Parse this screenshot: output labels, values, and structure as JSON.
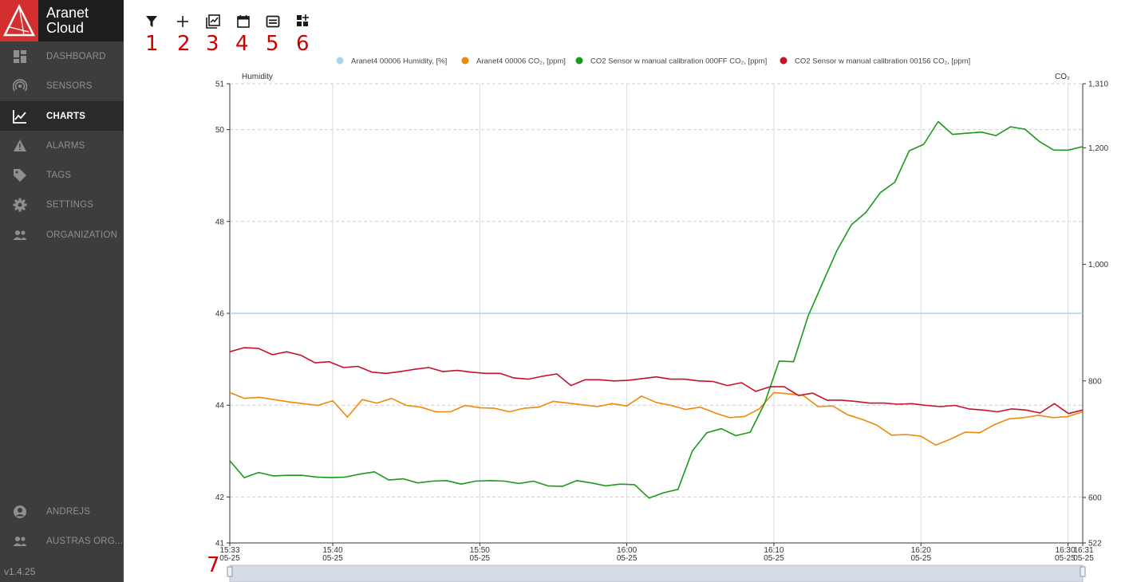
{
  "brand": {
    "line1": "Aranet",
    "line2": "Cloud"
  },
  "sidebar": {
    "items": [
      {
        "label": "DASHBOARD",
        "icon": "dashboard-icon",
        "active": false
      },
      {
        "label": "SENSORS",
        "icon": "sensors-icon",
        "active": false
      },
      {
        "label": "CHARTS",
        "icon": "charts-icon",
        "active": true
      },
      {
        "label": "ALARMS",
        "icon": "alarm-icon",
        "active": false
      },
      {
        "label": "TAGS",
        "icon": "tag-icon",
        "active": false
      },
      {
        "label": "SETTINGS",
        "icon": "gear-icon",
        "active": false
      },
      {
        "label": "ORGANIZATION",
        "icon": "organization-icon",
        "active": false
      }
    ],
    "user": {
      "label": "ANDREJS",
      "icon": "user-icon"
    },
    "org": {
      "label": "AUSTRAS ORG...",
      "icon": "org-group-icon"
    },
    "version": "v1.4.25"
  },
  "toolbar": {
    "tools": [
      {
        "icon": "filter-icon",
        "number": "1"
      },
      {
        "icon": "plus-icon",
        "number": "2"
      },
      {
        "icon": "chart-select-icon",
        "number": "3"
      },
      {
        "icon": "calendar-icon",
        "number": "4"
      },
      {
        "icon": "card-icon",
        "number": "5"
      },
      {
        "icon": "add-widget-icon",
        "number": "6"
      }
    ],
    "range_marker": "7"
  },
  "colors": {
    "sidebar": "#3d3d3d",
    "brand_red": "#d32f2f",
    "humidity": "#a8d8e6",
    "orange": "#f0880a",
    "green": "#1a9a1a",
    "red": "#c8102e",
    "annotation": "#d00000"
  },
  "chart_data": {
    "type": "line",
    "legend": [
      {
        "name": "Aranet4 00006 Humidity, [%]",
        "color": "#a8d8e6"
      },
      {
        "name": "Aranet4 00006 CO₂, [ppm]",
        "color": "#f0880a"
      },
      {
        "name": "CO2 Sensor w manual calibration 000FF CO₂, [ppm]",
        "color": "#1a9a1a"
      },
      {
        "name": "CO2 Sensor w manual calibration 00156 CO₂, [ppm]",
        "color": "#c8102e"
      }
    ],
    "left_axis": {
      "title": "Humidity",
      "range": [
        41,
        51
      ],
      "ticks": [
        51,
        50,
        48,
        46,
        44,
        42,
        41
      ]
    },
    "right_axis": {
      "title": "CO₂",
      "range": [
        522,
        1310
      ],
      "ticks": [
        "1,310",
        "1,200",
        "1,000",
        "800",
        "600",
        "522"
      ],
      "tick_values": [
        1310,
        1200,
        1000,
        800,
        600,
        522
      ]
    },
    "x_axis": {
      "range_minutes": [
        33,
        91
      ],
      "ticks": [
        {
          "time": "15:33",
          "date": "05-25",
          "minute": 33
        },
        {
          "time": "15:40",
          "date": "05-25",
          "minute": 40
        },
        {
          "time": "15:50",
          "date": "05-25",
          "minute": 50
        },
        {
          "time": "16:00",
          "date": "05-25",
          "minute": 60
        },
        {
          "time": "16:10",
          "date": "05-25",
          "minute": 70
        },
        {
          "time": "16:20",
          "date": "05-25",
          "minute": 80
        },
        {
          "time": "16:30",
          "date": "05-25",
          "minute": 90
        },
        {
          "time": "16:31",
          "date": "05-25",
          "minute": 91
        }
      ]
    },
    "series": [
      {
        "name": "Aranet4 00006 Humidity, [%]",
        "axis": "left",
        "values": [
          46,
          46
        ]
      },
      {
        "name": "Aranet4 00006 CO₂, [ppm]",
        "axis": "right",
        "values": [
          780,
          770,
          772,
          768,
          764,
          761,
          758,
          766,
          738,
          768,
          762,
          770,
          758,
          755,
          747,
          747,
          758,
          754,
          753,
          747,
          753,
          755,
          765,
          762,
          759,
          756,
          761,
          757,
          774,
          763,
          758,
          751,
          755,
          745,
          737,
          739,
          752,
          780,
          778,
          775,
          756,
          757,
          742,
          734,
          724,
          707,
          708,
          705,
          690,
          700,
          712,
          711,
          725,
          735,
          737,
          741,
          737,
          739,
          747
        ]
      },
      {
        "name": "CO2 Sensor w manual calibration 000FF CO₂, [ppm]",
        "axis": "right",
        "values": [
          663,
          634,
          643,
          637,
          638,
          638,
          635,
          634,
          635,
          640,
          644,
          630,
          632,
          625,
          628,
          629,
          623,
          628,
          629,
          628,
          624,
          628,
          620,
          619,
          629,
          625,
          620,
          623,
          622,
          599,
          608,
          614,
          680,
          711,
          718,
          706,
          712,
          762,
          834,
          833,
          911,
          968,
          1024,
          1068,
          1089,
          1123,
          1141,
          1195,
          1206,
          1245,
          1223,
          1225,
          1227,
          1221,
          1236,
          1232,
          1211,
          1196,
          1196,
          1202
        ]
      },
      {
        "name": "CO2 Sensor w manual calibration 00156 CO₂, [ppm]",
        "axis": "right",
        "values": [
          850,
          857,
          856,
          845,
          850,
          844,
          831,
          833,
          823,
          825,
          815,
          813,
          816,
          820,
          823,
          816,
          818,
          815,
          813,
          813,
          805,
          803,
          808,
          812,
          792,
          802,
          802,
          800,
          801,
          804,
          807,
          803,
          803,
          800,
          799,
          792,
          797,
          782,
          790,
          790,
          775,
          779,
          767,
          767,
          765,
          762,
          762,
          760,
          761,
          758,
          756,
          758,
          752,
          750,
          747,
          752,
          750,
          745,
          761,
          744,
          750
        ]
      }
    ]
  }
}
